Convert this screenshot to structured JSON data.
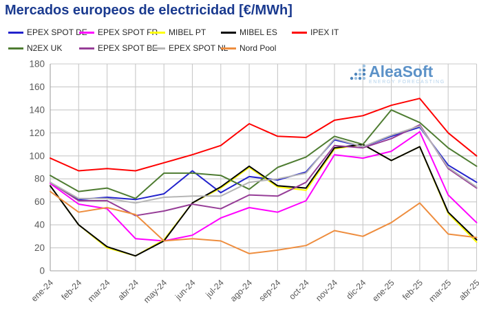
{
  "title": "Mercados europeos de electricidad [€/MWh]",
  "logo": {
    "name": "AleaSoft",
    "tagline": "ENERGY FORECASTING"
  },
  "axes": {
    "y_tick_labels": [
      "0",
      "20",
      "40",
      "60",
      "80",
      "100",
      "120",
      "140",
      "160",
      "180"
    ],
    "x_tick_labels": [
      "ene-24",
      "feb-24",
      "mar-24",
      "abr-24",
      "may-24",
      "jun-24",
      "jul-24",
      "ago-24",
      "sep-24",
      "oct-24",
      "nov-24",
      "dic-24",
      "ene-25",
      "feb-25",
      "mar-25",
      "abr-25"
    ]
  },
  "colors": {
    "title": "#1a3a8f",
    "grid": "#c8c8c8",
    "axis": "#a0a0a0",
    "tick_text": "#595959",
    "logo_blue": "#4080bf",
    "logo_light_blue": "#a5c9e8"
  },
  "chart_data": {
    "type": "line",
    "title": "Mercados europeos de electricidad [€/MWh]",
    "x": [
      "ene-24",
      "feb-24",
      "mar-24",
      "abr-24",
      "may-24",
      "jun-24",
      "jul-24",
      "ago-24",
      "sep-24",
      "oct-24",
      "nov-24",
      "dic-24",
      "ene-25",
      "feb-25",
      "mar-25",
      "abr-25"
    ],
    "ylim": [
      0,
      180
    ],
    "ytick_step": 20,
    "grid": true,
    "legend_position": "top",
    "unit": "€/MWh",
    "series": [
      {
        "name": "EPEX SPOT DE",
        "color": "#2222cc",
        "values": [
          77,
          62,
          64,
          62,
          67,
          87,
          68,
          82,
          79,
          86,
          114,
          108,
          117,
          125,
          92,
          77
        ]
      },
      {
        "name": "EPEX SPOT FR",
        "color": "#ff00ff",
        "values": [
          76,
          58,
          54,
          28,
          26,
          31,
          46,
          55,
          51,
          61,
          101,
          98,
          104,
          121,
          66,
          42
        ]
      },
      {
        "name": "MIBEL PT",
        "color": "#ffff00",
        "values": [
          74,
          40,
          20,
          13,
          27,
          59,
          72,
          90,
          73,
          70,
          106,
          110,
          96,
          108,
          50,
          25
        ]
      },
      {
        "name": "MIBEL ES",
        "color": "#000000",
        "values": [
          74,
          40,
          21,
          13,
          26,
          59,
          73,
          91,
          74,
          72,
          107,
          110,
          96,
          108,
          51,
          27
        ]
      },
      {
        "name": "IPEX IT",
        "color": "#fe0000",
        "values": [
          98,
          87,
          89,
          87,
          94,
          101,
          109,
          128,
          117,
          116,
          131,
          135,
          144,
          150,
          120,
          100
        ]
      },
      {
        "name": "N2EX UK",
        "color": "#4e7c31",
        "values": [
          83,
          69,
          72,
          63,
          85,
          85,
          83,
          71,
          90,
          99,
          117,
          110,
          140,
          129,
          107,
          91
        ]
      },
      {
        "name": "EPEX SPOT BE",
        "color": "#963d97",
        "values": [
          77,
          61,
          61,
          48,
          52,
          58,
          54,
          66,
          65,
          77,
          109,
          107,
          115,
          127,
          89,
          72
        ]
      },
      {
        "name": "EPEX SPOT NL",
        "color": "#b5b5b5",
        "values": [
          77,
          63,
          63,
          59,
          64,
          65,
          65,
          77,
          80,
          85,
          115,
          108,
          118,
          126,
          90,
          73
        ]
      },
      {
        "name": "Nord Pool",
        "color": "#ee8d3e",
        "values": [
          69,
          51,
          55,
          49,
          26,
          28,
          26,
          15,
          18,
          22,
          35,
          30,
          42,
          59,
          32,
          29
        ]
      }
    ]
  }
}
